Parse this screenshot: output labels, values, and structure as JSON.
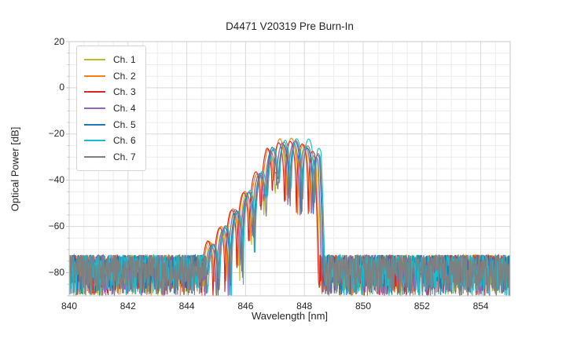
{
  "chart_data": {
    "type": "line",
    "title": "D4471 V20319 Pre Burn-In",
    "xlabel": "Wavelength [nm]",
    "ylabel": "Optical Power [dB]",
    "xlim": [
      840,
      855
    ],
    "ylim": [
      -90,
      20
    ],
    "xticks": [
      840,
      842,
      844,
      846,
      848,
      850,
      852,
      854
    ],
    "yticks": [
      20,
      0,
      -20,
      -40,
      -60,
      -80
    ],
    "minor_grid_step_nm": 0.5,
    "minor_grid_step_db": 5,
    "grid": true,
    "legend_position": "upper left",
    "noise_floor": {
      "top_db": -72.5,
      "mean_db": -77,
      "min_db": -90
    },
    "lobe_period_nm": 0.405,
    "envelope_top_db": [
      [
        844.45,
        -82
      ],
      [
        844.65,
        -70
      ],
      [
        845.15,
        -62
      ],
      [
        845.7,
        -52
      ],
      [
        846.3,
        -41
      ],
      [
        846.65,
        -32
      ],
      [
        846.85,
        -26.5
      ],
      [
        847.25,
        -23
      ],
      [
        847.6,
        -22.5
      ],
      [
        848.0,
        -24.5
      ],
      [
        848.35,
        -25.5
      ],
      [
        848.48,
        -30
      ],
      [
        848.56,
        -55
      ],
      [
        848.64,
        -90
      ]
    ],
    "notch_floor_db": [
      [
        844.45,
        -84
      ],
      [
        844.85,
        -86
      ],
      [
        845.35,
        -88
      ],
      [
        845.95,
        -75
      ],
      [
        846.45,
        -55
      ],
      [
        846.85,
        -40
      ],
      [
        847.15,
        -37
      ],
      [
        847.5,
        -48
      ],
      [
        847.85,
        -52
      ],
      [
        848.1,
        -46
      ],
      [
        848.35,
        -52
      ],
      [
        848.64,
        -82
      ]
    ],
    "series": [
      {
        "name": "Ch. 1",
        "color": "#bcbd22",
        "offset_nm": -0.03,
        "peak_db": -24.0
      },
      {
        "name": "Ch. 2",
        "color": "#ff7f0e",
        "offset_nm": -0.09,
        "peak_db": -22.5
      },
      {
        "name": "Ch. 3",
        "color": "#d62728",
        "offset_nm": -0.13,
        "peak_db": -22.5
      },
      {
        "name": "Ch. 4",
        "color": "#9467bd",
        "offset_nm": -0.01,
        "peak_db": -24.0
      },
      {
        "name": "Ch. 5",
        "color": "#1f77b4",
        "offset_nm": 0.04,
        "peak_db": -23.0
      },
      {
        "name": "Ch. 6",
        "color": "#17becf",
        "offset_nm": 0.09,
        "peak_db": -21.0
      },
      {
        "name": "Ch. 7",
        "color": "#7f7f7f",
        "offset_nm": 0.06,
        "peak_db": -23.5
      }
    ]
  },
  "style": {
    "background": "#ffffff",
    "grid_major": "#d9d9d9",
    "grid_minor": "#ececec",
    "frame": "#c8c8c8",
    "tick_mark": "#c8c8c8",
    "text": "#262626"
  }
}
